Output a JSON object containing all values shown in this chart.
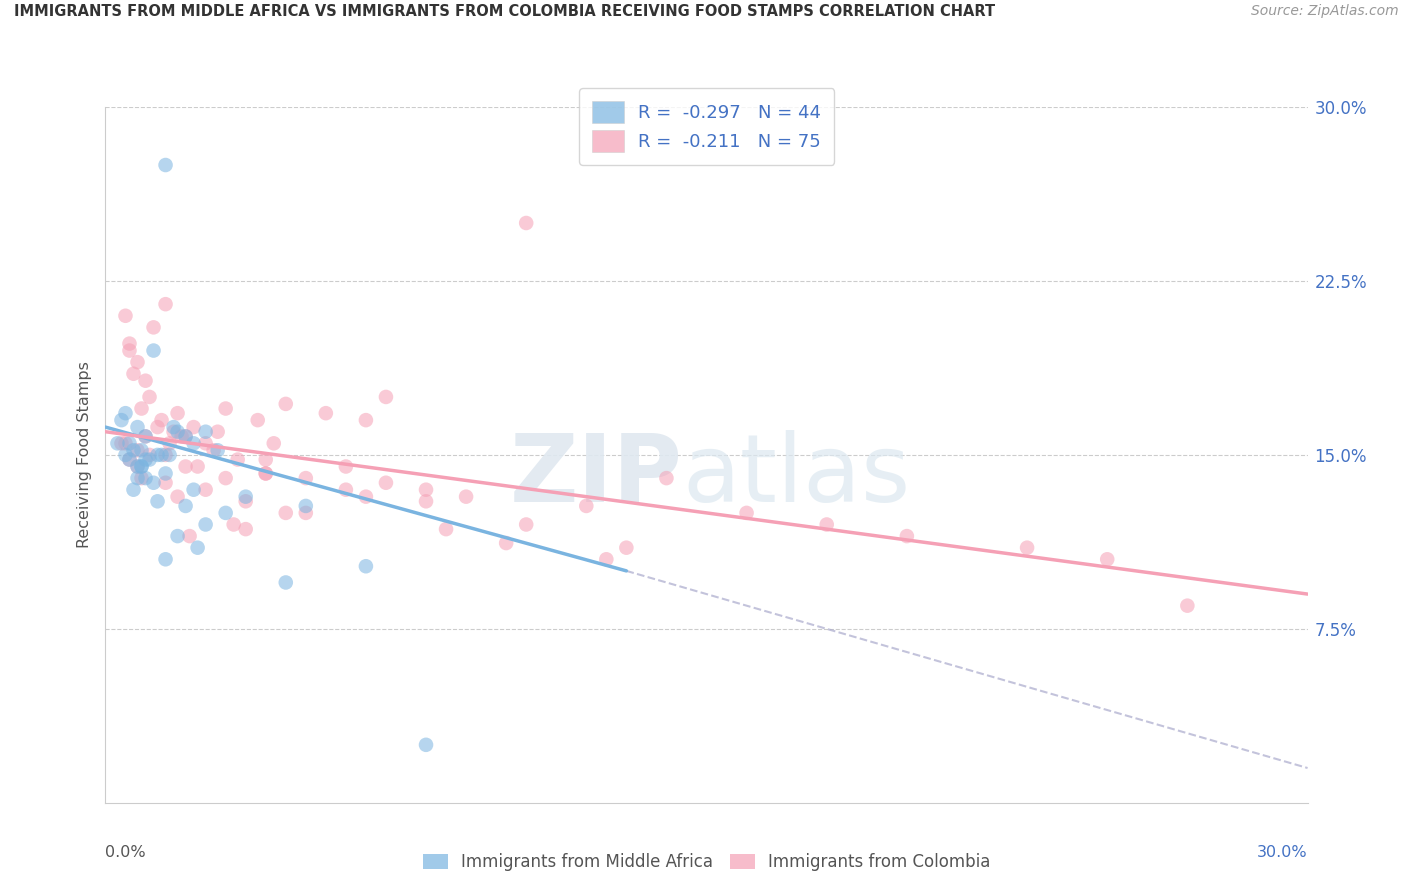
{
  "title": "IMMIGRANTS FROM MIDDLE AFRICA VS IMMIGRANTS FROM COLOMBIA RECEIVING FOOD STAMPS CORRELATION CHART",
  "source": "Source: ZipAtlas.com",
  "ylabel_label": "Receiving Food Stamps",
  "ytick_values": [
    7.5,
    15.0,
    22.5,
    30.0
  ],
  "xmin": 0.0,
  "xmax": 30.0,
  "ymin": 0.0,
  "ymax": 30.0,
  "blue_R": -0.297,
  "blue_N": 44,
  "pink_R": -0.211,
  "pink_N": 75,
  "blue_color": "#7ab4e0",
  "pink_color": "#f5a0b5",
  "blue_label": "Immigrants from Middle Africa",
  "pink_label": "Immigrants from Colombia",
  "blue_line_x0": 0.0,
  "blue_line_y0": 16.2,
  "blue_line_x1": 13.0,
  "blue_line_y1": 10.0,
  "pink_line_x0": 0.0,
  "pink_line_y0": 16.0,
  "pink_line_x1": 30.0,
  "pink_line_y1": 9.0,
  "blue_dash_x0": 13.0,
  "blue_dash_y0": 10.0,
  "blue_dash_x1": 30.0,
  "blue_dash_y1": 1.5,
  "blue_scatter_x": [
    1.5,
    1.2,
    0.5,
    0.8,
    1.0,
    0.6,
    0.9,
    1.3,
    0.7,
    2.0,
    1.8,
    0.4,
    1.1,
    0.5,
    0.9,
    1.5,
    2.2,
    1.0,
    0.8,
    1.4,
    0.6,
    1.7,
    2.5,
    0.3,
    1.2,
    0.9,
    1.6,
    2.8,
    1.0,
    0.7,
    3.5,
    2.0,
    1.3,
    0.8,
    3.0,
    5.0,
    2.5,
    1.8,
    2.3,
    1.5,
    6.5,
    2.2,
    4.5,
    8.0
  ],
  "blue_scatter_y": [
    27.5,
    19.5,
    16.8,
    16.2,
    15.8,
    15.5,
    15.2,
    15.0,
    15.2,
    15.8,
    16.0,
    16.5,
    14.8,
    15.0,
    14.5,
    14.2,
    15.5,
    14.8,
    14.5,
    15.0,
    14.8,
    16.2,
    16.0,
    15.5,
    13.8,
    14.5,
    15.0,
    15.2,
    14.0,
    13.5,
    13.2,
    12.8,
    13.0,
    14.0,
    12.5,
    12.8,
    12.0,
    11.5,
    11.0,
    10.5,
    10.2,
    13.5,
    9.5,
    2.5
  ],
  "pink_scatter_x": [
    0.5,
    0.8,
    1.2,
    1.5,
    0.7,
    0.9,
    1.1,
    1.8,
    2.2,
    0.6,
    1.0,
    1.4,
    1.9,
    2.5,
    3.0,
    3.8,
    4.5,
    5.5,
    6.5,
    7.0,
    0.4,
    0.6,
    0.8,
    1.0,
    1.5,
    2.0,
    3.0,
    4.0,
    5.0,
    6.0,
    7.0,
    8.0,
    9.0,
    10.5,
    12.0,
    14.0,
    16.0,
    18.0,
    20.0,
    23.0,
    25.0,
    27.0,
    0.5,
    1.1,
    1.7,
    2.3,
    3.5,
    5.0,
    6.5,
    8.5,
    10.0,
    12.5,
    4.5,
    3.2,
    2.1,
    1.3,
    2.0,
    2.7,
    3.3,
    4.0,
    0.9,
    1.6,
    2.8,
    4.2,
    0.8,
    1.5,
    2.5,
    4.0,
    6.0,
    8.0,
    10.5,
    13.0,
    0.6,
    1.8,
    3.5
  ],
  "pink_scatter_y": [
    21.0,
    19.0,
    20.5,
    21.5,
    18.5,
    17.0,
    17.5,
    16.8,
    16.2,
    19.8,
    18.2,
    16.5,
    15.8,
    15.5,
    17.0,
    16.5,
    17.2,
    16.8,
    16.5,
    17.5,
    15.5,
    14.8,
    15.2,
    15.8,
    15.0,
    14.5,
    14.0,
    14.8,
    14.0,
    14.5,
    13.8,
    13.5,
    13.2,
    25.0,
    12.8,
    14.0,
    12.5,
    12.0,
    11.5,
    11.0,
    10.5,
    8.5,
    15.5,
    15.0,
    16.0,
    14.5,
    13.0,
    12.5,
    13.2,
    11.8,
    11.2,
    10.5,
    12.5,
    12.0,
    11.5,
    16.2,
    15.8,
    15.2,
    14.8,
    14.2,
    14.0,
    15.5,
    16.0,
    15.5,
    14.5,
    13.8,
    13.5,
    14.2,
    13.5,
    13.0,
    12.0,
    11.0,
    19.5,
    13.2,
    11.8
  ]
}
